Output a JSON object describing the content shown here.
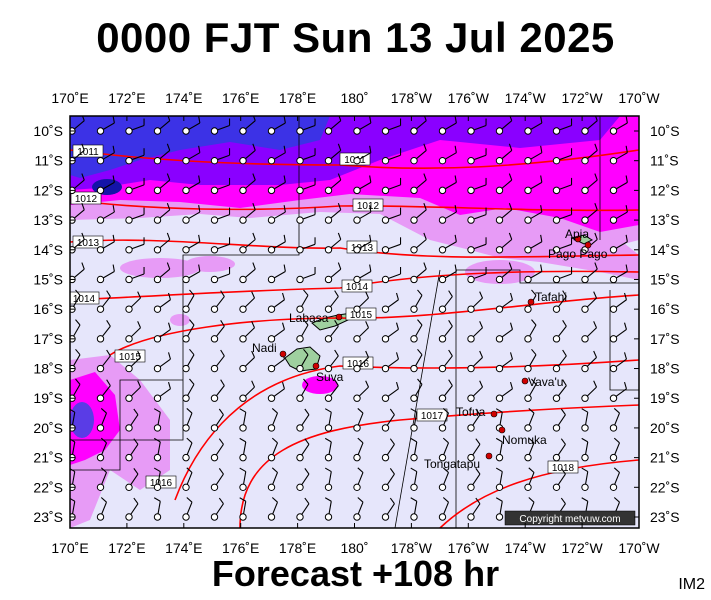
{
  "title": "0000 FJT Sun 13 Jul 2025",
  "footer": "Forecast +108 hr",
  "corner_code": "IM2",
  "copyright": "Copyright metvuw.com",
  "colors": {
    "background": "#ffffff",
    "ocean": "#e6e6fb",
    "precip_light": "#e79bf6",
    "precip_mid": "#ff00ff",
    "precip_heavy": "#8a00ff",
    "precip_max": "#3c32e6",
    "isobar": "#ff0000",
    "land": "#9fd09f",
    "city": "#d00000"
  },
  "lon_labels": [
    "170˚E",
    "172˚E",
    "174˚E",
    "176˚E",
    "178˚E",
    "180˚",
    "178˚W",
    "176˚W",
    "174˚W",
    "172˚W",
    "170˚W"
  ],
  "lat_labels": [
    "10˚S",
    "11˚S",
    "12˚S",
    "13˚S",
    "14˚S",
    "15˚S",
    "16˚S",
    "17˚S",
    "18˚S",
    "19˚S",
    "20˚S",
    "21˚S",
    "22˚S",
    "23˚S"
  ],
  "isobars": [
    {
      "label": "1011"
    },
    {
      "label": "1011"
    },
    {
      "label": "1012"
    },
    {
      "label": "1012"
    },
    {
      "label": "1013"
    },
    {
      "label": "1013"
    },
    {
      "label": "1014"
    },
    {
      "label": "1014"
    },
    {
      "label": "1015"
    },
    {
      "label": "1015"
    },
    {
      "label": "1016"
    },
    {
      "label": "1016"
    },
    {
      "label": "1017"
    },
    {
      "label": "1018"
    }
  ],
  "places": [
    "Apia",
    "Pago Pago",
    "Tafahi",
    "Labasa",
    "Nadi",
    "Suva",
    "Vava'u",
    "Tofua",
    "Nomuka",
    "Tongatapu"
  ]
}
